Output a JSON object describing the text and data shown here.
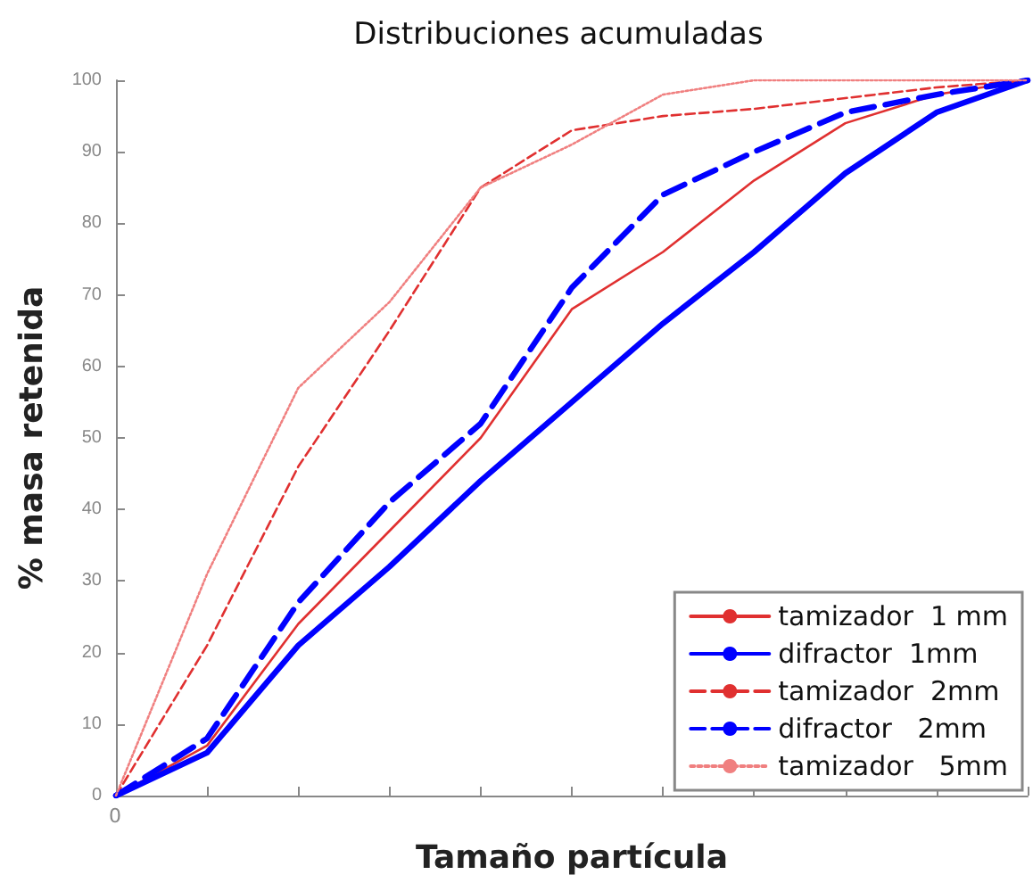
{
  "chart_data": {
    "type": "line",
    "title": "Distribuciones acumuladas",
    "xlabel": "Tamaño partícula",
    "ylabel": "% masa retenida",
    "categories": [
      null,
      null,
      null,
      null,
      null,
      null,
      null,
      null,
      null,
      null,
      null
    ],
    "annotations": [
      "0"
    ],
    "ylim": [
      0,
      100
    ],
    "yticks": [
      0,
      10,
      20,
      30,
      40,
      50,
      60,
      70,
      80,
      90,
      100
    ],
    "grid": false,
    "legend": "bottom right",
    "marker": "none",
    "series": [
      {
        "name": "tamizador  1 mm",
        "color": "#e03030",
        "line_style": "solid",
        "values": [
          0,
          7,
          24,
          37,
          50,
          68,
          76,
          86,
          94,
          98,
          100
        ]
      },
      {
        "name": "difractor  1mm",
        "color": "#0000ff",
        "line_style": "solid",
        "values": [
          0,
          6,
          21,
          32,
          44,
          55,
          66,
          76,
          87,
          95.5,
          100
        ]
      },
      {
        "name": "tamizador  2mm",
        "color": "#e03030",
        "line_style": "dashed",
        "values": [
          0,
          21,
          46,
          65,
          85,
          93,
          95,
          96,
          97.5,
          99,
          100
        ]
      },
      {
        "name": "difractor   2mm",
        "color": "#0000ff",
        "line_style": "dashed",
        "values": [
          0,
          8,
          27,
          41,
          52,
          71,
          84,
          90,
          95.5,
          98,
          100
        ]
      },
      {
        "name": "tamizador   5mm",
        "color": "#f08080",
        "line_style": "dotted",
        "values": [
          0,
          31,
          57,
          69,
          85,
          91,
          98,
          100,
          100,
          100,
          100
        ]
      }
    ]
  }
}
